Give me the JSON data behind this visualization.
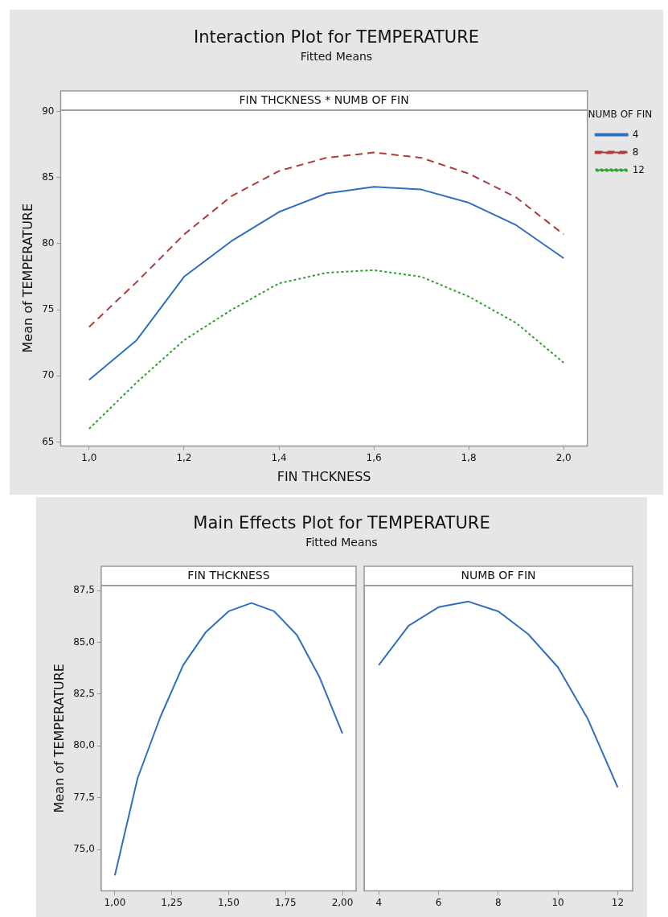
{
  "chart_data": [
    {
      "type": "line",
      "title": "Interaction Plot for TEMPERATURE",
      "subtitle": "Fitted Means",
      "annotations": [
        "FIN THCKNESS * NUMB OF FIN"
      ],
      "xlabel": "FIN THCKNESS",
      "ylabel": "Mean of TEMPERATURE",
      "legend_title": "NUMB OF FIN",
      "legend": "right",
      "grid": false,
      "marker": "none",
      "x": [
        1.0,
        1.1,
        1.2,
        1.3,
        1.4,
        1.5,
        1.6,
        1.7,
        1.8,
        1.9,
        2.0
      ],
      "xlim": [
        0.94,
        2.05
      ],
      "xticks": [
        {
          "value": 1.0,
          "label": "1,0"
        },
        {
          "value": 1.2,
          "label": "1,2"
        },
        {
          "value": 1.4,
          "label": "1,4"
        },
        {
          "value": 1.6,
          "label": "1,6"
        },
        {
          "value": 1.8,
          "label": "1,8"
        },
        {
          "value": 2.0,
          "label": "2,0"
        }
      ],
      "ylim": [
        64.7,
        90.1
      ],
      "yticks": [
        65,
        70,
        75,
        80,
        85,
        90
      ],
      "series": [
        {
          "name": "4",
          "color": "#2f6fbf",
          "line_style": "solid",
          "values": [
            69.7,
            72.7,
            77.5,
            80.2,
            82.4,
            83.8,
            84.3,
            84.1,
            83.1,
            81.4,
            78.9
          ]
        },
        {
          "name": "8",
          "color": "#b03a3a",
          "line_style": "dashed",
          "values": [
            73.7,
            77.1,
            80.7,
            83.6,
            85.5,
            86.5,
            86.9,
            86.5,
            85.3,
            83.5,
            80.7
          ]
        },
        {
          "name": "12",
          "color": "#2ca02c",
          "line_style": "dotted",
          "values": [
            66.0,
            69.5,
            72.7,
            75.0,
            77.0,
            77.8,
            78.0,
            77.5,
            76.0,
            74.0,
            71.0
          ]
        }
      ]
    },
    {
      "type": "line",
      "title": "Main Effects Plot for TEMPERATURE",
      "subtitle": "Fitted Means",
      "annotations": [
        "FIN THCKNESS"
      ],
      "ylabel": "Mean of TEMPERATURE",
      "grid": false,
      "marker": "none",
      "legend": false,
      "x": [
        1.0,
        1.1,
        1.2,
        1.3,
        1.4,
        1.5,
        1.6,
        1.7,
        1.8,
        1.9,
        2.0
      ],
      "xlim": [
        0.94,
        2.06
      ],
      "xticks": [
        {
          "value": 1.0,
          "label": "1,00"
        },
        {
          "value": 1.25,
          "label": "1,25"
        },
        {
          "value": 1.5,
          "label": "1,50"
        },
        {
          "value": 1.75,
          "label": "1,75"
        },
        {
          "value": 2.0,
          "label": "2,00"
        }
      ],
      "ylim": [
        73.0,
        87.74
      ],
      "yticks": [
        {
          "value": 75,
          "label": "75,0"
        },
        {
          "value": 77.5,
          "label": "77,5"
        },
        {
          "value": 80,
          "label": "80,0"
        },
        {
          "value": 82.5,
          "label": "82,5"
        },
        {
          "value": 85,
          "label": "85,0"
        },
        {
          "value": 87.5,
          "label": "87,5"
        }
      ],
      "series": [
        {
          "color": "#2f6fbf",
          "values": [
            73.75,
            78.45,
            81.4,
            83.9,
            85.5,
            86.5,
            86.9,
            86.5,
            85.35,
            83.3,
            80.6
          ]
        }
      ]
    },
    {
      "type": "line",
      "annotations": [
        "NUMB OF FIN"
      ],
      "grid": false,
      "marker": "none",
      "legend": false,
      "tick_labels": "x",
      "x": [
        4,
        5,
        6,
        7,
        8,
        9,
        10,
        11,
        12
      ],
      "xlim": [
        3.51,
        12.5
      ],
      "xticks": [
        4,
        6,
        8,
        10,
        12
      ],
      "ylim": [
        73.0,
        87.74
      ],
      "yticks": [
        75,
        77.5,
        80,
        82.5,
        85,
        87.5
      ],
      "series": [
        {
          "color": "#2f6fbf",
          "values": [
            83.9,
            85.8,
            86.7,
            86.97,
            86.5,
            85.4,
            83.8,
            81.3,
            78.0
          ]
        }
      ]
    }
  ]
}
